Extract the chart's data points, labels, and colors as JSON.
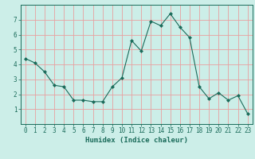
{
  "x": [
    0,
    1,
    2,
    3,
    4,
    5,
    6,
    7,
    8,
    9,
    10,
    11,
    12,
    13,
    14,
    15,
    16,
    17,
    18,
    19,
    20,
    21,
    22,
    23
  ],
  "y": [
    4.4,
    4.1,
    3.5,
    2.6,
    2.5,
    1.6,
    1.6,
    1.5,
    1.5,
    2.5,
    3.1,
    5.6,
    4.9,
    6.9,
    6.6,
    7.4,
    6.5,
    5.8,
    2.5,
    1.7,
    2.1,
    1.6,
    1.9,
    0.7
  ],
  "line_color": "#1a6b5a",
  "marker": "D",
  "marker_size": 2,
  "bg_color": "#cceee8",
  "grid_color": "#e8a0a0",
  "xlabel": "Humidex (Indice chaleur)",
  "ylabel": "",
  "xlim": [
    -0.5,
    23.5
  ],
  "ylim": [
    0,
    8
  ],
  "yticks": [
    1,
    2,
    3,
    4,
    5,
    6,
    7
  ],
  "xticks": [
    0,
    1,
    2,
    3,
    4,
    5,
    6,
    7,
    8,
    9,
    10,
    11,
    12,
    13,
    14,
    15,
    16,
    17,
    18,
    19,
    20,
    21,
    22,
    23
  ],
  "tick_fontsize": 5.5,
  "xlabel_fontsize": 6.5,
  "linewidth": 0.8
}
